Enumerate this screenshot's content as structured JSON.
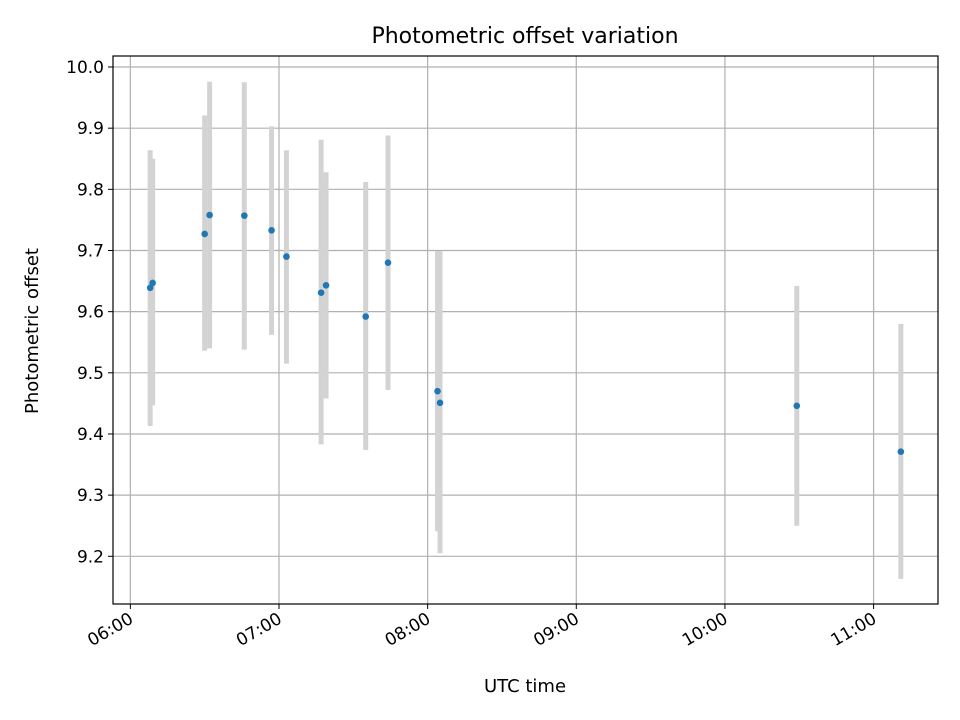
{
  "chart_data": {
    "type": "scatter",
    "title": "Photometric offset variation",
    "xlabel": "UTC time",
    "ylabel": "Photometric offset",
    "x_tick_labels": [
      "06:00",
      "07:00",
      "08:00",
      "09:00",
      "10:00",
      "11:00"
    ],
    "y_tick_labels": [
      "9.2",
      "9.3",
      "9.4",
      "9.5",
      "9.6",
      "9.7",
      "9.8",
      "9.9",
      "10.0"
    ],
    "xlim": [
      "05:53",
      "11:26"
    ],
    "ylim": [
      9.122,
      10.018
    ],
    "grid": true,
    "point_color": "#1f77b4",
    "errorbar_color": "#d3d3d3",
    "points": [
      {
        "x": "06:08",
        "y": 9.639,
        "lo": 9.413,
        "hi": 9.864
      },
      {
        "x": "06:09",
        "y": 9.647,
        "lo": 9.447,
        "hi": 9.85
      },
      {
        "x": "06:30",
        "y": 9.727,
        "lo": 9.536,
        "hi": 9.921
      },
      {
        "x": "06:32",
        "y": 9.758,
        "lo": 9.54,
        "hi": 9.976
      },
      {
        "x": "06:46",
        "y": 9.757,
        "lo": 9.538,
        "hi": 9.975
      },
      {
        "x": "06:57",
        "y": 9.733,
        "lo": 9.562,
        "hi": 9.903
      },
      {
        "x": "07:03",
        "y": 9.69,
        "lo": 9.515,
        "hi": 9.864
      },
      {
        "x": "07:17",
        "y": 9.631,
        "lo": 9.383,
        "hi": 9.881
      },
      {
        "x": "07:19",
        "y": 9.643,
        "lo": 9.458,
        "hi": 9.828
      },
      {
        "x": "07:35",
        "y": 9.592,
        "lo": 9.374,
        "hi": 9.812
      },
      {
        "x": "07:44",
        "y": 9.68,
        "lo": 9.472,
        "hi": 9.888
      },
      {
        "x": "08:04",
        "y": 9.47,
        "lo": 9.241,
        "hi": 9.699
      },
      {
        "x": "08:05",
        "y": 9.451,
        "lo": 9.205,
        "hi": 9.699
      },
      {
        "x": "10:29",
        "y": 9.446,
        "lo": 9.25,
        "hi": 9.642
      },
      {
        "x": "11:11",
        "y": 9.371,
        "lo": 9.163,
        "hi": 9.58
      }
    ]
  }
}
